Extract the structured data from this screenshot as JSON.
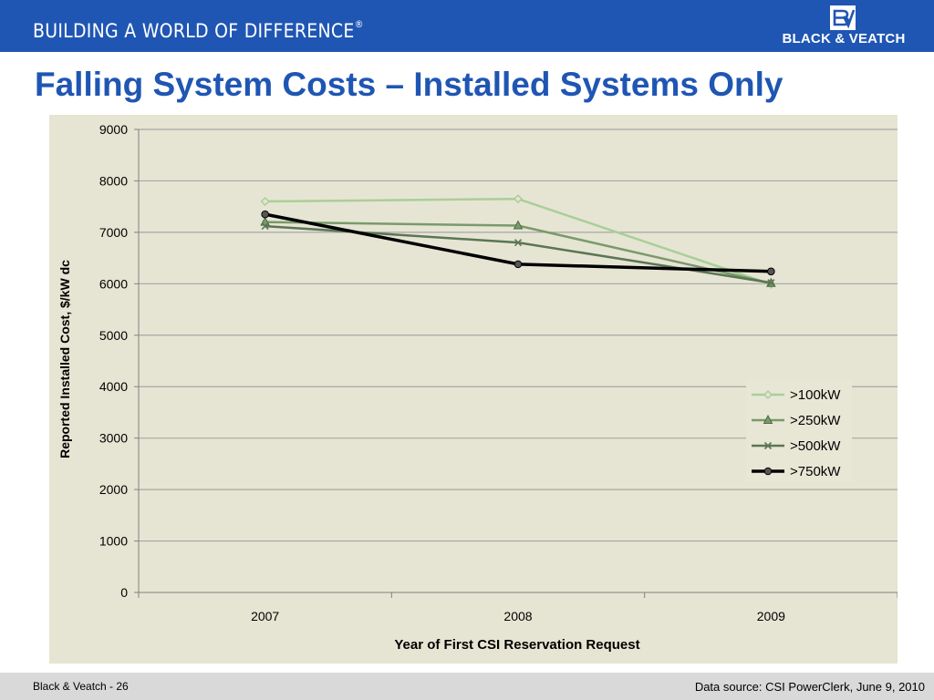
{
  "header": {
    "tagline": "BUILDING A WORLD OF DIFFERENCE",
    "tagline_mark": "®",
    "company": "BLACK & VEATCH",
    "banner_color": "#1f56b3"
  },
  "title": "Falling System Costs – Installed Systems Only",
  "footer": {
    "left": "Black & Veatch - 26",
    "right": "Data source: CSI PowerClerk, June 9, 2010"
  },
  "chart_data": {
    "type": "line",
    "title": "",
    "xlabel": "Year of First CSI Reservation Request",
    "ylabel": "Reported Installed Cost, $/kW dc",
    "categories": [
      "2007",
      "2008",
      "2009"
    ],
    "ylim": [
      0,
      9000
    ],
    "yticks": [
      0,
      1000,
      2000,
      3000,
      4000,
      5000,
      6000,
      7000,
      8000,
      9000
    ],
    "grid": true,
    "legend_position": "right",
    "series": [
      {
        "name": ">100kW",
        "values": [
          7600,
          7650,
          5990
        ],
        "color": "#a9cf98",
        "marker": "diamond"
      },
      {
        "name": ">250kW",
        "values": [
          7200,
          7130,
          6010
        ],
        "color": "#7a9a6b",
        "marker": "triangle"
      },
      {
        "name": ">500kW",
        "values": [
          7120,
          6800,
          6020
        ],
        "color": "#5b7655",
        "marker": "x"
      },
      {
        "name": ">750kW",
        "values": [
          7350,
          6380,
          6240
        ],
        "color": "#000000",
        "marker": "circle"
      }
    ]
  }
}
